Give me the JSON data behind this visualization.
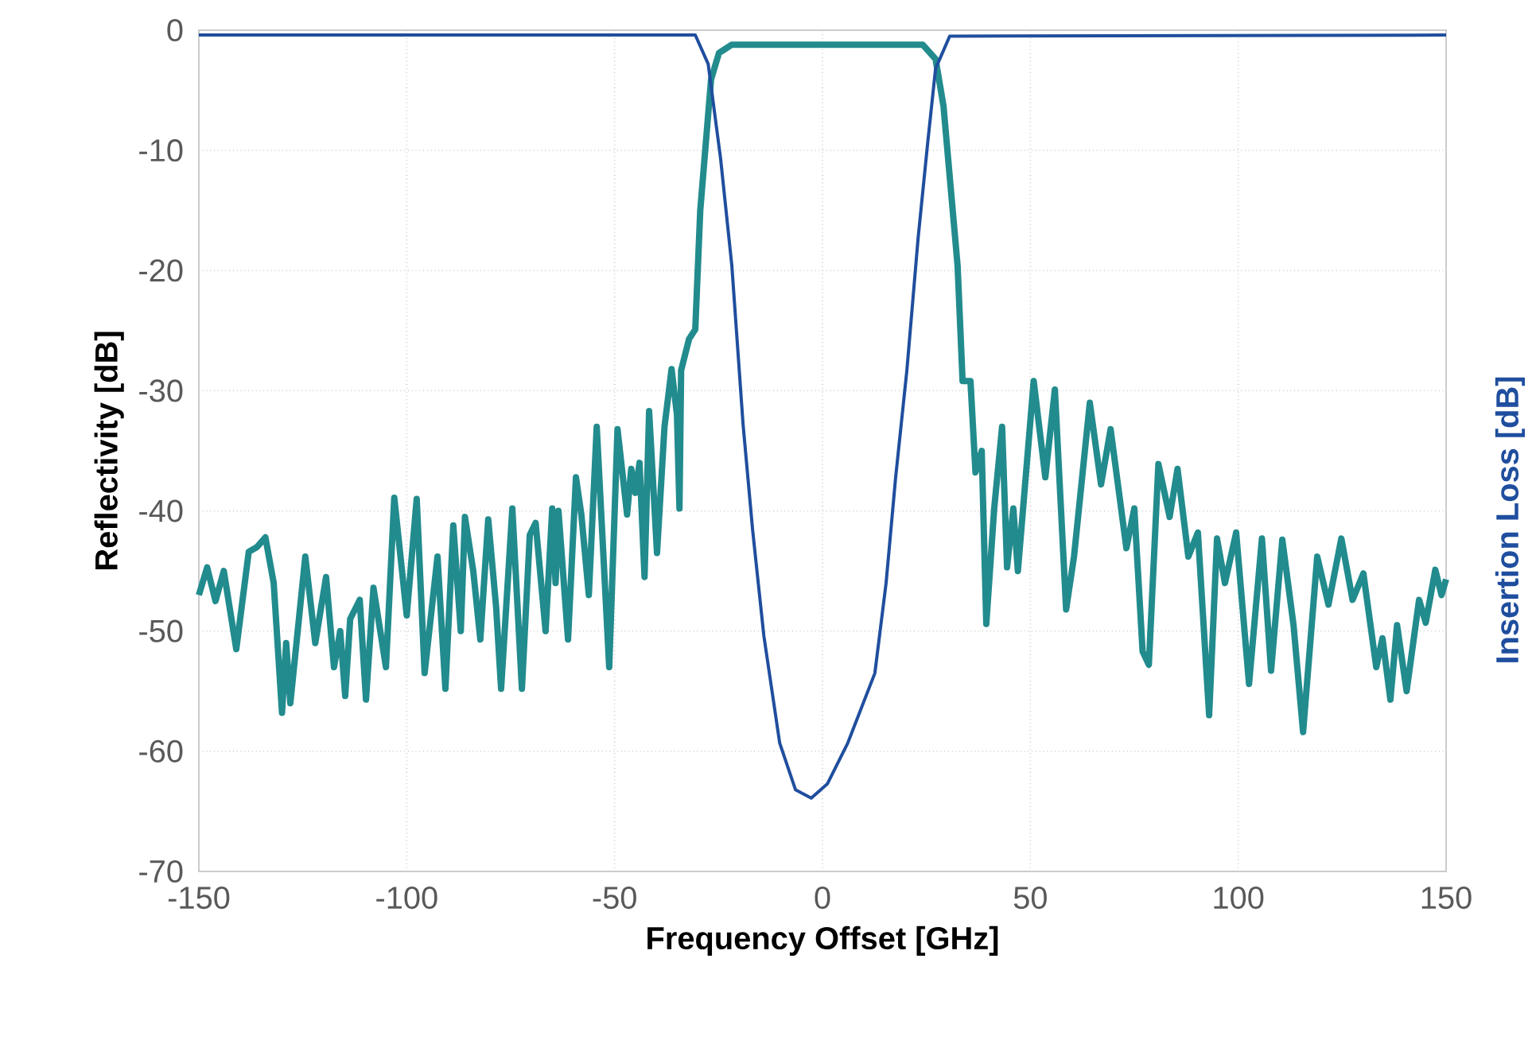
{
  "chart_data": {
    "type": "line",
    "xlabel": "Frequency Offset [GHz]",
    "ylabel": "Reflectivity [dB]",
    "y2label": "Insertion Loss [dB]",
    "xlim": [
      -150,
      150
    ],
    "xticks": [
      -150,
      -100,
      -50,
      0,
      50,
      100,
      150
    ],
    "ylim": [
      -70,
      0
    ],
    "yticks": [
      -70,
      -60,
      -50,
      -40,
      -30,
      -20,
      -10,
      0
    ],
    "grid": true,
    "marker": "none",
    "line_style": "solid",
    "series": [
      {
        "color": "#228b8d",
        "x": [
          -150,
          -148,
          -146,
          -144,
          -141,
          -138,
          -136,
          -134,
          -132,
          -130,
          -129,
          -128,
          -124.4,
          -122,
          -119.4,
          -117.5,
          -116,
          -114.8,
          -113.6,
          -111.3,
          -109.8,
          -108,
          -105,
          -103,
          -100,
          -97.6,
          -95.7,
          -92.6,
          -90.7,
          -88.8,
          -87,
          -86,
          -84,
          -82.3,
          -80.4,
          -78.5,
          -77.3,
          -74.6,
          -72.3,
          -70.4,
          -69,
          -66.6,
          -65,
          -64.2,
          -63.5,
          -61.2,
          -59.3,
          -58,
          -56.2,
          -54.3,
          -51.3,
          -49.3,
          -47,
          -46,
          -45,
          -44,
          -42.8,
          -41.7,
          -39.8,
          -38,
          -36.3,
          -35,
          -34.4,
          -34,
          -32.1,
          -30.6,
          -29.4,
          -26.8,
          -24.9,
          -21.8,
          24.1,
          27.2,
          29.1,
          32.5,
          33.7,
          35.6,
          36.8,
          38.3,
          39.4,
          41.3,
          43.2,
          44.4,
          45.9,
          47,
          50.8,
          53.6,
          55.9,
          58.6,
          60.5,
          64.3,
          67,
          69.3,
          73.1,
          75,
          77,
          78.5,
          80.8,
          83.5,
          85.4,
          88,
          90.3,
          93,
          94.9,
          96.8,
          99.5,
          102.6,
          105.7,
          107.9,
          110.6,
          113.3,
          115.6,
          119,
          121.7,
          124.8,
          127.5,
          130.1,
          133.2,
          134.7,
          136.6,
          138.2,
          140.5,
          143.5,
          145.1,
          147.4,
          148.9,
          150
        ],
        "values": [
          -47,
          -44.7,
          -47.5,
          -45,
          -51.5,
          -43.4,
          -43,
          -42.2,
          -46,
          -56.8,
          -51,
          -56,
          -43.8,
          -51,
          -45.5,
          -53,
          -50,
          -55.4,
          -49,
          -47.4,
          -55.7,
          -46.4,
          -53,
          -38.9,
          -48.7,
          -39,
          -53.5,
          -43.8,
          -54.8,
          -41.2,
          -50,
          -40.5,
          -45,
          -50.7,
          -40.7,
          -48,
          -54.8,
          -39.8,
          -54.8,
          -42,
          -41,
          -50,
          -39.8,
          -46,
          -40,
          -50.7,
          -37.2,
          -40.3,
          -47,
          -33,
          -53,
          -33.2,
          -40.3,
          -36.5,
          -38.5,
          -36,
          -45.5,
          -31.7,
          -43.5,
          -33,
          -28.2,
          -32,
          -39.8,
          -28.3,
          -25.7,
          -24.9,
          -15,
          -4.1,
          -1.9,
          -1.2,
          -1.2,
          -2.4,
          -6.3,
          -19.6,
          -29.2,
          -29.2,
          -36.8,
          -35,
          -49.4,
          -39.8,
          -33,
          -44.7,
          -39.8,
          -45,
          -29.2,
          -37.2,
          -29.9,
          -48.2,
          -43.8,
          -31,
          -37.8,
          -33.2,
          -43.1,
          -39.8,
          -51.7,
          -52.8,
          -36.1,
          -40.5,
          -36.5,
          -43.8,
          -41.8,
          -57,
          -42.3,
          -46,
          -41.8,
          -54.4,
          -42.3,
          -53.3,
          -42.4,
          -49.5,
          -58.4,
          -43.8,
          -47.8,
          -42.3,
          -47.4,
          -45.2,
          -53,
          -50.6,
          -55.7,
          -49.5,
          -55,
          -47.4,
          -49.3,
          -44.9,
          -47,
          -45.7
        ]
      },
      {
        "color": "#1f4e9e",
        "x": [
          -150,
          -30.6,
          -27.5,
          -24.5,
          -21.8,
          -19.1,
          -16.8,
          -14.1,
          -10.3,
          -6.5,
          -2.7,
          1.2,
          6.1,
          12.6,
          15.3,
          17.6,
          20.3,
          23,
          25.3,
          27.2,
          30.6,
          150
        ],
        "values": [
          -0.4,
          -0.4,
          -2.8,
          -10.7,
          -19.6,
          -32.8,
          -41.6,
          -50.4,
          -59.3,
          -63.2,
          -63.9,
          -62.7,
          -59.3,
          -53.5,
          -46,
          -37.2,
          -28.3,
          -17.3,
          -9.4,
          -3.2,
          -0.5,
          -0.4
        ]
      }
    ]
  }
}
